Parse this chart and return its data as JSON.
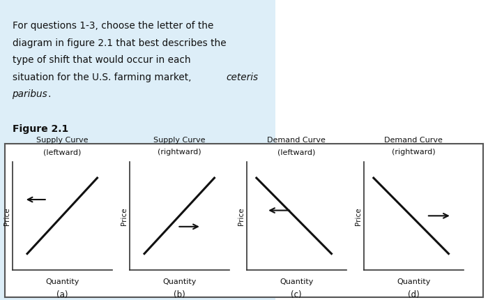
{
  "text_box_bg": "#ddeef8",
  "text_bg_right": "#ffffff",
  "figure_label": "Figure 2.1",
  "panels": [
    {
      "title_line1": "Supply Curve",
      "title_line2": "(leftward)",
      "curve_type": "supply",
      "arrow_dir": "left",
      "label": "(a)"
    },
    {
      "title_line1": "Supply Curve",
      "title_line2": "(rightward)",
      "curve_type": "supply",
      "arrow_dir": "right",
      "label": "(b)"
    },
    {
      "title_line1": "Demand Curve",
      "title_line2": "(leftward)",
      "curve_type": "demand",
      "arrow_dir": "left",
      "label": "(c)"
    },
    {
      "title_line1": "Demand Curve",
      "title_line2": "(rightward)",
      "curve_type": "demand",
      "arrow_dir": "right",
      "label": "(d)"
    }
  ],
  "bg_color": "#ffffff",
  "border_color": "#555555",
  "curve_color": "#111111",
  "axis_color": "#333333",
  "text_color": "#111111",
  "arrow_color": "#111111",
  "text_normal": "For questions 1-3, choose the letter of the\ndiagram in figure 2.1 that best describes the\ntype of shift that would occur in each\nsituation for the U.S. farming market, ",
  "text_italic": "ceteris\nparibus",
  "text_after_italic": "."
}
